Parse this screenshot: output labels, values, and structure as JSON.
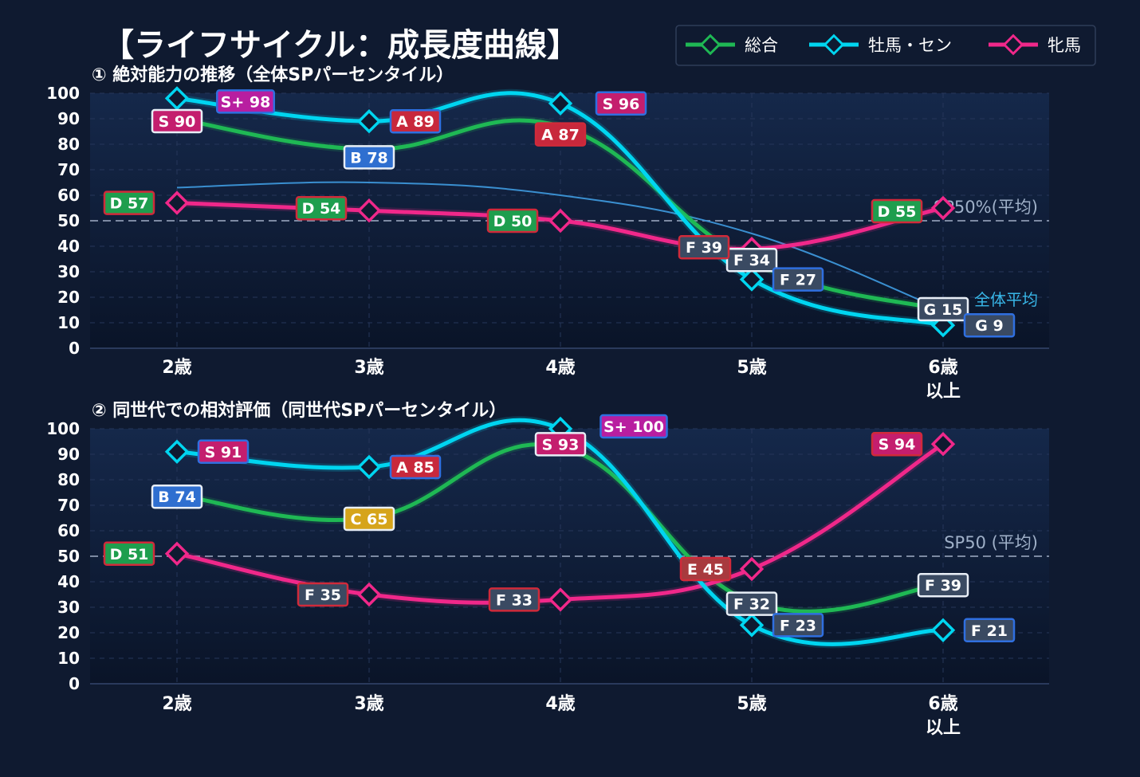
{
  "title": "【ライフサイクル：成長度曲線】",
  "colors": {
    "background": "#0f1a30",
    "plot_bg_top": "#15284a",
    "plot_bg_bottom": "#0a1428",
    "grid": "#26365a",
    "ref_line": "#7d8aa3",
    "avg_line": "#3a8fd0",
    "series": {
      "総合": "#1fb854",
      "牡馬・セン": "#00d5f0",
      "牝馬": "#f0288a"
    },
    "grade": {
      "S+": "#b81ea0",
      "S": "#c41e6e",
      "A": "#c8283c",
      "B": "#2f6fd0",
      "C": "#d6a41a",
      "D": "#1e9e4e",
      "E": "#a83a3e",
      "F": "#3a4a62",
      "G": "#3a4a62"
    },
    "badge_border": {
      "white": "#e8eef6",
      "blue": "#2f6fe0",
      "red": "#d02a3a",
      "magenta": "#f0288a"
    }
  },
  "legend": {
    "position": "top-right",
    "items": [
      {
        "label": "総合",
        "color": "#1fb854"
      },
      {
        "label": "牡馬・セン",
        "color": "#00d5f0"
      },
      {
        "label": "牝馬",
        "color": "#f0288a"
      }
    ]
  },
  "chart_data": [
    {
      "type": "line",
      "title": "① 絶対能力の推移（全体SPパーセンタイル）",
      "categories": [
        "2歳",
        "3歳",
        "4歳",
        "5歳",
        "6歳\n以上"
      ],
      "ylim": [
        0,
        100
      ],
      "yticks": [
        0,
        10,
        20,
        30,
        40,
        50,
        60,
        70,
        80,
        90,
        100
      ],
      "grid": true,
      "reference_line": {
        "value": 50,
        "label": "SP50%(平均)"
      },
      "average_line": {
        "label": "全体平均",
        "values": [
          63,
          65,
          60,
          45,
          15
        ]
      },
      "series": [
        {
          "name": "総合",
          "values": [
            90,
            78,
            87,
            34,
            15
          ],
          "labels": [
            {
              "grade": "S",
              "value": 90,
              "border": "white"
            },
            {
              "grade": "B",
              "value": 78,
              "border": "white"
            },
            {
              "grade": "A",
              "value": 87,
              "border": "red"
            },
            {
              "grade": "F",
              "value": 34,
              "border": "white"
            },
            {
              "grade": "G",
              "value": 15,
              "border": "white"
            }
          ]
        },
        {
          "name": "牡馬・セン",
          "values": [
            98,
            89,
            96,
            27,
            9
          ],
          "labels": [
            {
              "grade": "S+",
              "value": 98,
              "border": "blue"
            },
            {
              "grade": "A",
              "value": 89,
              "border": "blue"
            },
            {
              "grade": "S",
              "value": 96,
              "border": "blue"
            },
            {
              "grade": "F",
              "value": 27,
              "border": "blue"
            },
            {
              "grade": "G",
              "value": 9,
              "border": "blue"
            }
          ]
        },
        {
          "name": "牝馬",
          "values": [
            57,
            54,
            50,
            39,
            55
          ],
          "labels": [
            {
              "grade": "D",
              "value": 57,
              "border": "red"
            },
            {
              "grade": "D",
              "value": 54,
              "border": "red"
            },
            {
              "grade": "D",
              "value": 50,
              "border": "red"
            },
            {
              "grade": "F",
              "value": 39,
              "border": "red"
            },
            {
              "grade": "D",
              "value": 55,
              "border": "red"
            }
          ]
        }
      ]
    },
    {
      "type": "line",
      "title": "② 同世代での相対評価（同世代SPパーセンタイル）",
      "categories": [
        "2歳",
        "3歳",
        "4歳",
        "5歳",
        "6歳\n以上"
      ],
      "ylim": [
        0,
        100
      ],
      "yticks": [
        0,
        10,
        20,
        30,
        40,
        50,
        60,
        70,
        80,
        90,
        100
      ],
      "grid": true,
      "reference_line": {
        "value": 50,
        "label": "SP50 (平均)"
      },
      "series": [
        {
          "name": "総合",
          "values": [
            74,
            65,
            93,
            32,
            39
          ],
          "labels": [
            {
              "grade": "B",
              "value": 74,
              "border": "white"
            },
            {
              "grade": "C",
              "value": 65,
              "border": "white"
            },
            {
              "grade": "S",
              "value": 93,
              "border": "white"
            },
            {
              "grade": "F",
              "value": 32,
              "border": "white"
            },
            {
              "grade": "F",
              "value": 39,
              "border": "white"
            }
          ]
        },
        {
          "name": "牡馬・セン",
          "values": [
            91,
            85,
            100,
            23,
            21
          ],
          "labels": [
            {
              "grade": "S",
              "value": 91,
              "border": "blue"
            },
            {
              "grade": "A",
              "value": 85,
              "border": "blue"
            },
            {
              "grade": "S+",
              "value": 100,
              "border": "blue"
            },
            {
              "grade": "F",
              "value": 23,
              "border": "blue"
            },
            {
              "grade": "F",
              "value": 21,
              "border": "blue"
            }
          ]
        },
        {
          "name": "牝馬",
          "values": [
            51,
            35,
            33,
            45,
            94
          ],
          "labels": [
            {
              "grade": "D",
              "value": 51,
              "border": "red"
            },
            {
              "grade": "F",
              "value": 35,
              "border": "red"
            },
            {
              "grade": "F",
              "value": 33,
              "border": "red"
            },
            {
              "grade": "E",
              "value": 45,
              "border": "red"
            },
            {
              "grade": "S",
              "value": 94,
              "border": "red"
            }
          ]
        }
      ]
    }
  ]
}
